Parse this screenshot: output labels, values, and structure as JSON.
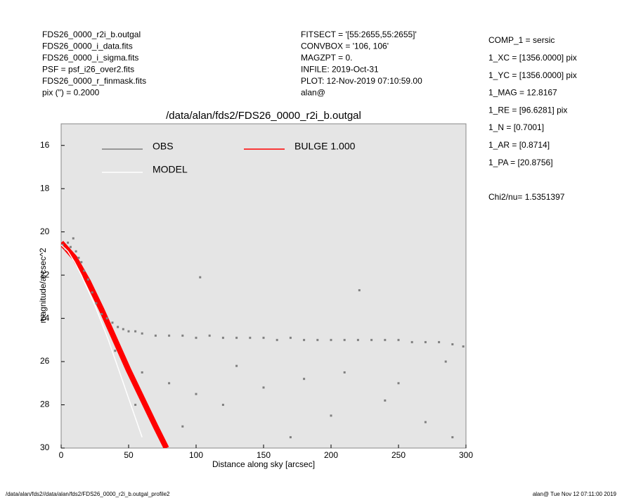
{
  "header": {
    "left": [
      "FDS26_0000_r2i_b.outgal",
      "FDS26_0000_i_data.fits",
      "FDS26_0000_i_sigma.fits",
      "PSF     = psf_i26_over2.fits",
      "FDS26_0000_r_finmask.fits",
      "pix (\") =  0.2000"
    ],
    "middle": [
      "FITSECT = '[55:2655,55:2655]'",
      "CONVBOX = '106, 106'",
      "MAGZPT  =               0.",
      "INFILE: 2019-Oct-31",
      "PLOT: 12-Nov-2019 07:10:59.00",
      "alan@"
    ]
  },
  "parameters": [
    "COMP_1  = sersic",
    "1_XC    = [1356.0000] pix",
    "1_YC    = [1356.0000] pix",
    "1_MAG   = 12.8167",
    "1_RE    = [96.6281] pix",
    "1_N     = [0.7001]",
    "1_AR    = [0.8714]",
    "1_PA    = [20.8756]"
  ],
  "chi2": "Chi2/nu=       1.5351397",
  "footer": {
    "left": "/data/alan/fds2//data/alan/fds2/FDS26_0000_r2i_b.outgal_profile2",
    "right": "alan@  Tue Nov 12 07:11:00 2019"
  },
  "chart_data": {
    "type": "scatter",
    "title": "/data/alan/fds2/FDS26_0000_r2i_b.outgal",
    "x_label": "Distance along sky [arcsec]",
    "y_label": "magnitude/arcsec^2",
    "xlim": [
      0,
      300
    ],
    "ylim": [
      30,
      15
    ],
    "xticks": [
      0,
      50,
      100,
      150,
      200,
      250,
      300
    ],
    "yticks": [
      16,
      18,
      20,
      22,
      24,
      26,
      28,
      30
    ],
    "background": "#e5e5e5",
    "series": [
      {
        "name": "OBS",
        "color": "#7f7f7f",
        "mode": "points",
        "x": [
          1,
          3,
          5,
          7,
          9,
          11,
          13,
          15,
          17,
          20,
          23,
          26,
          30,
          34,
          38,
          42,
          46,
          50,
          55,
          60,
          70,
          80,
          90,
          100,
          103,
          110,
          120,
          130,
          140,
          150,
          160,
          170,
          180,
          190,
          200,
          210,
          220,
          221,
          230,
          240,
          250,
          260,
          270,
          280,
          290,
          298,
          40,
          60,
          80,
          100,
          120,
          150,
          180,
          200,
          240,
          270,
          290,
          55,
          90,
          130,
          170,
          210,
          250,
          285
        ],
        "values": [
          20.6,
          20.8,
          20.5,
          20.7,
          20.3,
          20.9,
          21.2,
          21.4,
          21.8,
          22.2,
          22.8,
          23.3,
          23.8,
          24.0,
          24.2,
          24.4,
          24.5,
          24.6,
          24.6,
          24.7,
          24.8,
          24.8,
          24.8,
          24.9,
          22.1,
          24.8,
          24.9,
          24.9,
          24.9,
          24.9,
          25.0,
          24.9,
          25.0,
          25.0,
          25.0,
          25.0,
          25.0,
          22.7,
          25.0,
          25.0,
          25.0,
          25.1,
          25.1,
          25.1,
          25.2,
          25.3,
          25.5,
          26.5,
          27.0,
          27.5,
          28.0,
          27.2,
          26.8,
          28.5,
          27.8,
          28.8,
          29.5,
          28.0,
          29.0,
          26.2,
          29.5,
          26.5,
          27.0,
          26.0
        ]
      },
      {
        "name": "MODEL",
        "color": "#ffffff",
        "mode": "line",
        "x": [
          0,
          5,
          10,
          15,
          20,
          25,
          30,
          35,
          40,
          45,
          50,
          55,
          60
        ],
        "values": [
          20.6,
          20.9,
          21.4,
          22.0,
          22.7,
          23.4,
          24.2,
          25.0,
          25.9,
          26.8,
          27.7,
          28.6,
          29.5
        ]
      },
      {
        "name": "BULGE  1.000",
        "color": "#ff0000",
        "mode": "line",
        "x": [
          0,
          10,
          20,
          30,
          40,
          50,
          60,
          70,
          78
        ],
        "values": [
          20.5,
          21.2,
          22.3,
          23.6,
          25.0,
          26.4,
          27.7,
          29.0,
          30.0
        ]
      }
    ]
  }
}
